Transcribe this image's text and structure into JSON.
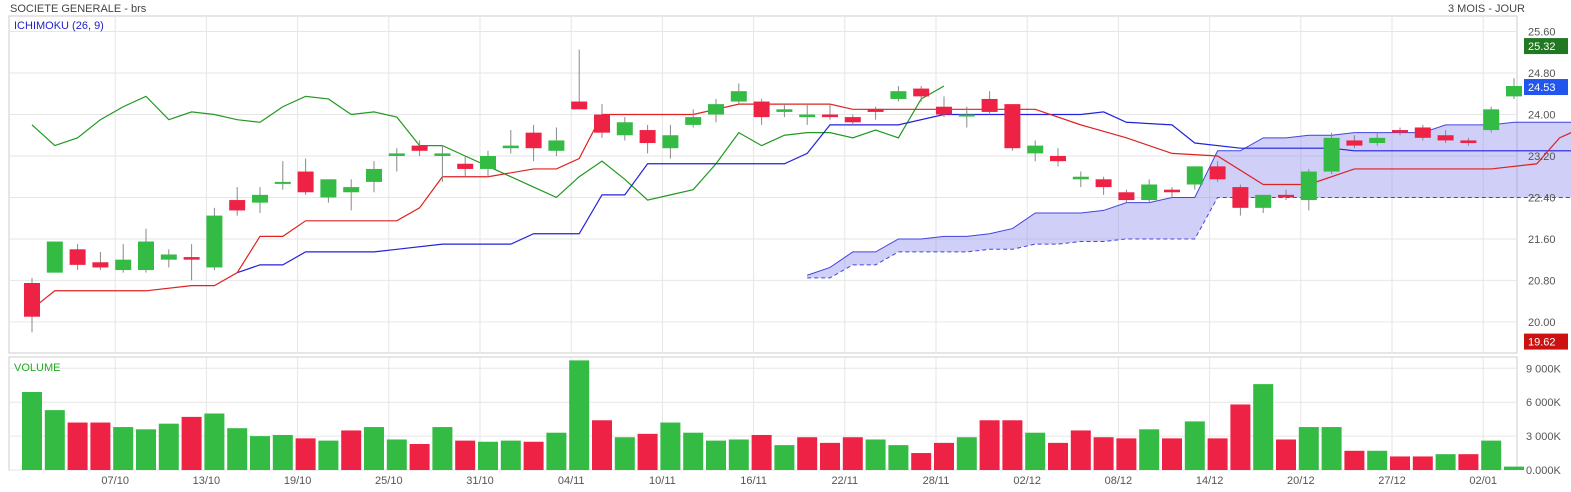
{
  "header": {
    "title": "SOCIETE GENERALE - brs",
    "period": "3 MOIS - JOUR"
  },
  "colors": {
    "up": "#33bb44",
    "down": "#ee2244",
    "tenkan": "#dd2222",
    "kijun": "#2222dd",
    "chikou": "#229922",
    "cloud": "#8888ee",
    "badge_green": "#227722",
    "badge_blue": "#2255ee",
    "badge_red": "#cc1111"
  },
  "chart_data": [
    {
      "type": "candlestick",
      "title": "ICHIMOKU (26, 9)",
      "ylim": [
        19.4,
        25.9
      ],
      "y_ticks": [
        "25.60",
        "24.80",
        "24.00",
        "23.20",
        "22.40",
        "21.60",
        "20.80",
        "20.00"
      ],
      "x_ticks": [
        "07/10",
        "13/10",
        "19/10",
        "25/10",
        "31/10",
        "04/11",
        "10/11",
        "16/11",
        "22/11",
        "28/11",
        "02/12",
        "08/12",
        "14/12",
        "20/12",
        "27/12",
        "02/01"
      ],
      "badges": [
        {
          "value": "25.32",
          "color": "green"
        },
        {
          "value": "24.53",
          "color": "blue"
        },
        {
          "value": "19.62",
          "color": "red"
        }
      ],
      "candles": [
        [
          20.75,
          20.1,
          20.85,
          19.8
        ],
        [
          20.95,
          21.55,
          21.55,
          20.95
        ],
        [
          21.4,
          21.1,
          21.5,
          21.0
        ],
        [
          21.15,
          21.05,
          21.35,
          21.0
        ],
        [
          21.0,
          21.2,
          21.5,
          20.95
        ],
        [
          21.0,
          21.55,
          21.8,
          20.95
        ],
        [
          21.2,
          21.3,
          21.4,
          21.05
        ],
        [
          21.25,
          21.2,
          21.5,
          20.8
        ],
        [
          21.05,
          22.05,
          22.2,
          21.0
        ],
        [
          22.35,
          22.15,
          22.6,
          22.05
        ],
        [
          22.3,
          22.45,
          22.6,
          22.1
        ],
        [
          22.7,
          22.7,
          23.1,
          22.55
        ],
        [
          22.9,
          22.5,
          23.15,
          22.45
        ],
        [
          22.4,
          22.75,
          22.75,
          22.3
        ],
        [
          22.5,
          22.6,
          22.75,
          22.15
        ],
        [
          22.7,
          22.95,
          23.1,
          22.5
        ],
        [
          23.2,
          23.25,
          23.35,
          22.9
        ],
        [
          23.4,
          23.3,
          23.5,
          23.2
        ],
        [
          23.2,
          23.25,
          23.4,
          22.7
        ],
        [
          23.05,
          22.95,
          23.2,
          22.8
        ],
        [
          22.95,
          23.2,
          23.3,
          22.8
        ],
        [
          23.35,
          23.4,
          23.7,
          23.25
        ],
        [
          23.65,
          23.35,
          23.8,
          23.1
        ],
        [
          23.3,
          23.5,
          23.75,
          23.2
        ],
        [
          24.25,
          24.1,
          25.25,
          24.1
        ],
        [
          24.0,
          23.65,
          24.2,
          23.55
        ],
        [
          23.6,
          23.85,
          23.95,
          23.5
        ],
        [
          23.7,
          23.45,
          23.8,
          23.25
        ],
        [
          23.35,
          23.6,
          23.8,
          23.15
        ],
        [
          23.8,
          23.95,
          24.1,
          23.75
        ],
        [
          24.0,
          24.2,
          24.3,
          23.85
        ],
        [
          24.25,
          24.45,
          24.6,
          24.2
        ],
        [
          24.25,
          23.95,
          24.3,
          23.8
        ],
        [
          24.05,
          24.1,
          24.2,
          23.95
        ],
        [
          23.95,
          24.0,
          24.2,
          23.8
        ],
        [
          24.0,
          23.95,
          24.2,
          23.9
        ],
        [
          23.95,
          23.85,
          24.0,
          23.8
        ],
        [
          24.1,
          24.05,
          24.15,
          23.9
        ],
        [
          24.3,
          24.45,
          24.55,
          24.25
        ],
        [
          24.5,
          24.35,
          24.55,
          24.25
        ],
        [
          24.15,
          24.0,
          24.35,
          23.95
        ],
        [
          24.0,
          24.0,
          24.15,
          23.75
        ],
        [
          24.3,
          24.05,
          24.45,
          24.0
        ],
        [
          24.2,
          23.35,
          24.2,
          23.3
        ],
        [
          23.25,
          23.4,
          23.5,
          23.1
        ],
        [
          23.2,
          23.1,
          23.35,
          23.0
        ],
        [
          22.75,
          22.8,
          22.9,
          22.6
        ],
        [
          22.75,
          22.6,
          22.8,
          22.45
        ],
        [
          22.5,
          22.35,
          22.55,
          22.3
        ],
        [
          22.35,
          22.65,
          22.75,
          22.3
        ],
        [
          22.55,
          22.5,
          22.6,
          22.4
        ],
        [
          22.65,
          23.0,
          23.0,
          22.55
        ],
        [
          23.0,
          22.75,
          23.1,
          22.7
        ],
        [
          22.6,
          22.2,
          22.65,
          22.05
        ],
        [
          22.2,
          22.45,
          22.45,
          22.1
        ],
        [
          22.45,
          22.4,
          22.55,
          22.35
        ],
        [
          22.35,
          22.9,
          22.95,
          22.15
        ],
        [
          22.9,
          23.55,
          23.65,
          22.85
        ],
        [
          23.5,
          23.4,
          23.6,
          23.35
        ],
        [
          23.45,
          23.55,
          23.65,
          23.4
        ],
        [
          23.7,
          23.65,
          23.75,
          23.6
        ],
        [
          23.75,
          23.55,
          23.8,
          23.5
        ],
        [
          23.6,
          23.5,
          23.7,
          23.45
        ],
        [
          23.5,
          23.45,
          23.55,
          23.4
        ],
        [
          23.7,
          24.1,
          24.15,
          23.65
        ],
        [
          24.35,
          24.55,
          24.7,
          24.3
        ]
      ],
      "tenkan": [
        [
          0,
          20.25
        ],
        [
          1,
          20.6
        ],
        [
          5,
          20.6
        ],
        [
          7,
          20.7
        ],
        [
          8,
          20.7
        ],
        [
          9,
          20.95
        ],
        [
          10,
          21.65
        ],
        [
          11,
          21.65
        ],
        [
          12,
          21.95
        ],
        [
          16,
          21.95
        ],
        [
          17,
          22.2
        ],
        [
          18,
          22.8
        ],
        [
          20,
          22.8
        ],
        [
          22,
          22.95
        ],
        [
          23,
          22.95
        ],
        [
          24,
          23.15
        ],
        [
          25,
          24.0
        ],
        [
          29,
          24.0
        ],
        [
          31,
          24.2
        ],
        [
          35,
          24.2
        ],
        [
          36,
          24.1
        ],
        [
          44,
          24.1
        ],
        [
          46,
          23.8
        ],
        [
          48,
          23.55
        ],
        [
          50,
          23.25
        ],
        [
          52,
          23.2
        ],
        [
          54,
          22.65
        ],
        [
          56,
          22.65
        ],
        [
          58,
          22.95
        ],
        [
          60,
          22.95
        ],
        [
          64,
          22.95
        ],
        [
          66,
          23.05
        ],
        [
          67,
          23.55
        ],
        [
          68,
          23.75
        ]
      ],
      "kijun": [
        [
          9,
          20.95
        ],
        [
          10,
          21.1
        ],
        [
          11,
          21.1
        ],
        [
          12,
          21.35
        ],
        [
          15,
          21.35
        ],
        [
          16,
          21.4
        ],
        [
          18,
          21.5
        ],
        [
          21,
          21.5
        ],
        [
          22,
          21.7
        ],
        [
          24,
          21.7
        ],
        [
          25,
          22.45
        ],
        [
          26,
          22.45
        ],
        [
          27,
          23.05
        ],
        [
          33,
          23.05
        ],
        [
          34,
          23.25
        ],
        [
          35,
          23.8
        ],
        [
          38,
          23.8
        ],
        [
          40,
          24.0
        ],
        [
          46,
          24.0
        ],
        [
          47,
          24.05
        ],
        [
          48,
          23.85
        ],
        [
          50,
          23.8
        ],
        [
          51,
          23.45
        ],
        [
          53,
          23.35
        ],
        [
          57,
          23.35
        ],
        [
          58,
          23.3
        ],
        [
          68,
          23.3
        ]
      ],
      "chikou": [
        [
          0,
          23.8
        ],
        [
          1,
          23.4
        ],
        [
          2,
          23.55
        ],
        [
          3,
          23.9
        ],
        [
          4,
          24.15
        ],
        [
          5,
          24.35
        ],
        [
          6,
          23.9
        ],
        [
          7,
          24.05
        ],
        [
          8,
          24.0
        ],
        [
          9,
          23.9
        ],
        [
          10,
          23.85
        ],
        [
          11,
          24.15
        ],
        [
          12,
          24.35
        ],
        [
          13,
          24.3
        ],
        [
          14,
          24.0
        ],
        [
          15,
          24.05
        ],
        [
          16,
          23.95
        ],
        [
          17,
          23.4
        ],
        [
          18,
          23.4
        ],
        [
          19,
          23.2
        ],
        [
          20,
          23.0
        ],
        [
          21,
          22.8
        ],
        [
          22,
          22.6
        ],
        [
          23,
          22.4
        ],
        [
          24,
          22.8
        ],
        [
          25,
          23.1
        ],
        [
          26,
          22.75
        ],
        [
          27,
          22.35
        ],
        [
          28,
          22.45
        ],
        [
          29,
          22.55
        ],
        [
          30,
          23.05
        ],
        [
          31,
          23.65
        ],
        [
          32,
          23.4
        ],
        [
          33,
          23.6
        ],
        [
          34,
          23.65
        ],
        [
          35,
          23.65
        ],
        [
          36,
          23.55
        ],
        [
          37,
          23.7
        ],
        [
          38,
          23.55
        ],
        [
          39,
          24.3
        ],
        [
          40,
          24.55
        ]
      ],
      "cloud_x": [
        26,
        27,
        28,
        29,
        30,
        31,
        32,
        33,
        34,
        35,
        36,
        37,
        38,
        39,
        40,
        41,
        42,
        43,
        44,
        45,
        46,
        47,
        48,
        49,
        50,
        51,
        52,
        53,
        54,
        55,
        56,
        57,
        58,
        59,
        60,
        61,
        62,
        63,
        64,
        65,
        66,
        67,
        68
      ],
      "senkou_a": [
        null,
        null,
        null,
        null,
        null,
        null,
        null,
        null,
        20.9,
        21.05,
        21.35,
        21.35,
        21.6,
        21.6,
        21.65,
        21.65,
        21.7,
        21.8,
        22.1,
        22.1,
        22.1,
        22.15,
        22.3,
        22.3,
        22.4,
        22.4,
        23.3,
        23.3,
        23.55,
        23.55,
        23.6,
        23.6,
        23.65,
        23.65,
        23.65,
        23.65,
        23.8,
        23.8,
        23.8,
        23.85,
        23.85,
        23.85,
        23.85
      ],
      "senkou_b": [
        null,
        null,
        null,
        null,
        null,
        null,
        null,
        null,
        20.85,
        20.85,
        21.1,
        21.1,
        21.35,
        21.35,
        21.35,
        21.35,
        21.4,
        21.4,
        21.5,
        21.5,
        21.55,
        21.55,
        21.6,
        21.6,
        21.6,
        21.6,
        22.4,
        22.4,
        22.4,
        22.4,
        22.4,
        22.4,
        22.4,
        22.4,
        22.4,
        22.4,
        22.4,
        22.4,
        22.4,
        22.4,
        22.4,
        22.4,
        22.4
      ]
    },
    {
      "type": "bar",
      "title": "VOLUME",
      "ylim": [
        0,
        10000000
      ],
      "y_ticks": [
        "9 000K",
        "6 000K",
        "3 000K",
        "0.000K"
      ],
      "values": [
        6900000,
        5300000,
        4200000,
        4200000,
        3800000,
        3600000,
        4100000,
        4700000,
        5000000,
        3700000,
        3000000,
        3100000,
        2800000,
        2600000,
        3500000,
        3800000,
        2700000,
        2300000,
        3800000,
        2600000,
        2500000,
        2600000,
        2500000,
        3300000,
        9700000,
        4400000,
        2900000,
        3200000,
        4200000,
        3300000,
        2600000,
        2700000,
        3100000,
        2200000,
        2900000,
        2400000,
        2900000,
        2700000,
        2200000,
        1500000,
        2400000,
        2900000,
        4400000,
        4400000,
        3300000,
        2400000,
        3500000,
        2900000,
        2800000,
        3600000,
        2800000,
        4300000,
        2800000,
        5800000,
        7600000,
        2700000,
        3800000,
        3800000,
        1700000,
        1700000,
        1200000,
        1200000,
        1400000,
        1400000,
        2600000,
        300000
      ],
      "up": [
        true,
        true,
        false,
        false,
        true,
        true,
        true,
        false,
        true,
        true,
        true,
        true,
        false,
        true,
        false,
        true,
        true,
        false,
        true,
        false,
        true,
        true,
        false,
        true,
        true,
        false,
        true,
        false,
        true,
        true,
        true,
        true,
        false,
        true,
        false,
        false,
        false,
        true,
        true,
        false,
        false,
        true,
        false,
        false,
        true,
        false,
        false,
        false,
        false,
        true,
        false,
        true,
        false,
        false,
        true,
        false,
        true,
        true,
        false,
        true,
        false,
        false,
        true,
        false,
        true,
        true
      ]
    }
  ]
}
